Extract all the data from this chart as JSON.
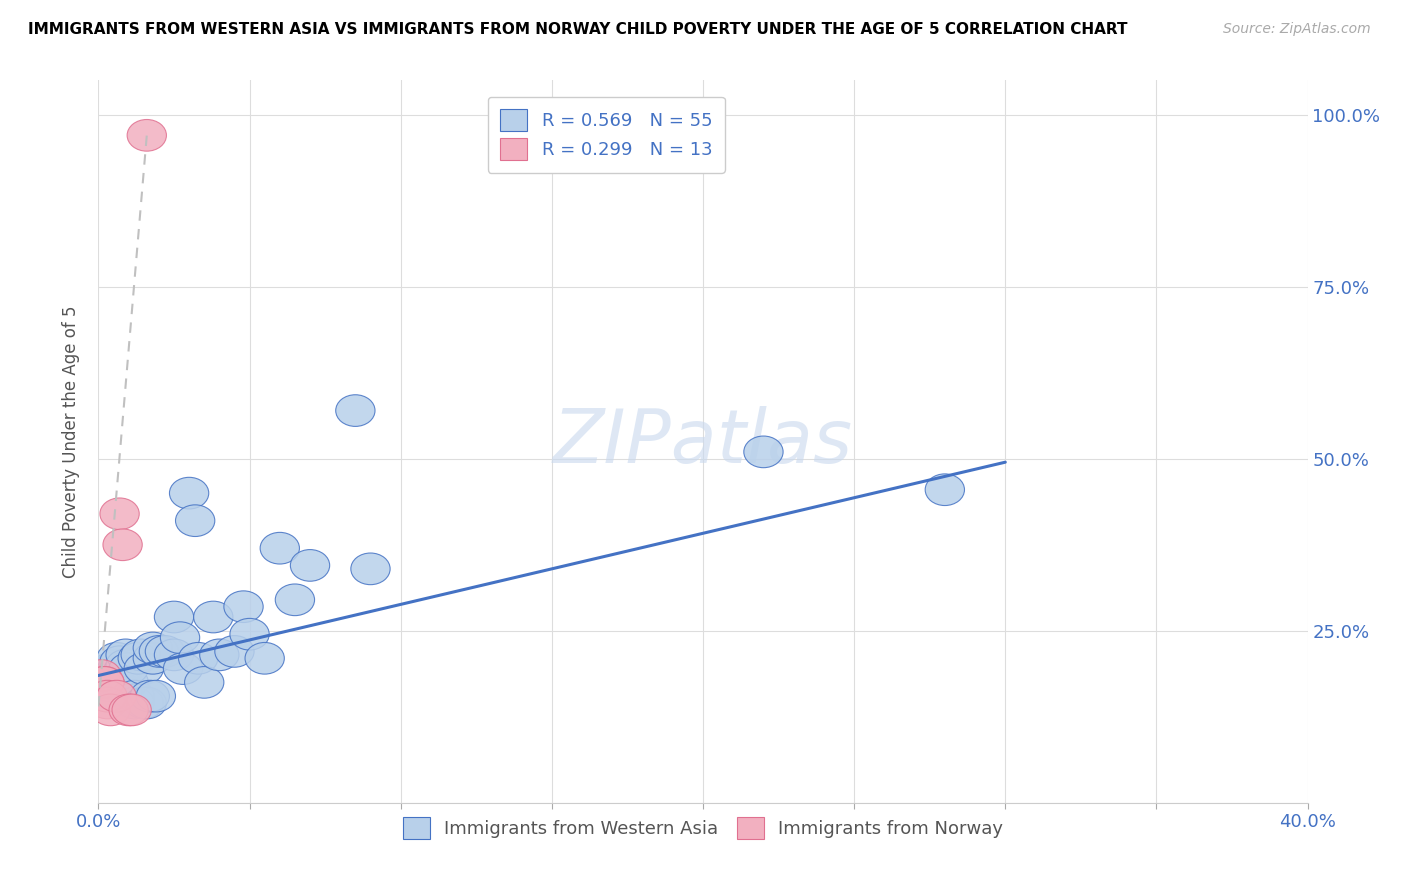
{
  "title": "IMMIGRANTS FROM WESTERN ASIA VS IMMIGRANTS FROM NORWAY CHILD POVERTY UNDER THE AGE OF 5 CORRELATION CHART",
  "source": "Source: ZipAtlas.com",
  "ylabel": "Child Poverty Under the Age of 5",
  "legend_blue": {
    "R": 0.569,
    "N": 55,
    "label": "Immigrants from Western Asia"
  },
  "legend_pink": {
    "R": 0.299,
    "N": 13,
    "label": "Immigrants from Norway"
  },
  "watermark": "ZIPatlas",
  "blue_color": "#b8d0ea",
  "pink_color": "#f2b0c0",
  "blue_line_color": "#4472c4",
  "pink_line_color": "#e07090",
  "gray_line_color": "#c0c0c0",
  "blue_scatter": [
    [
      0.001,
      0.175
    ],
    [
      0.002,
      0.175
    ],
    [
      0.002,
      0.16
    ],
    [
      0.003,
      0.18
    ],
    [
      0.003,
      0.185
    ],
    [
      0.003,
      0.19
    ],
    [
      0.004,
      0.17
    ],
    [
      0.004,
      0.185
    ],
    [
      0.004,
      0.195
    ],
    [
      0.005,
      0.175
    ],
    [
      0.005,
      0.18
    ],
    [
      0.006,
      0.2
    ],
    [
      0.006,
      0.21
    ],
    [
      0.007,
      0.175
    ],
    [
      0.007,
      0.205
    ],
    [
      0.008,
      0.165
    ],
    [
      0.008,
      0.19
    ],
    [
      0.009,
      0.2
    ],
    [
      0.009,
      0.215
    ],
    [
      0.01,
      0.175
    ],
    [
      0.01,
      0.195
    ],
    [
      0.012,
      0.145
    ],
    [
      0.012,
      0.155
    ],
    [
      0.013,
      0.21
    ],
    [
      0.014,
      0.215
    ],
    [
      0.015,
      0.145
    ],
    [
      0.015,
      0.195
    ],
    [
      0.016,
      0.145
    ],
    [
      0.017,
      0.155
    ],
    [
      0.018,
      0.21
    ],
    [
      0.018,
      0.225
    ],
    [
      0.019,
      0.155
    ],
    [
      0.02,
      0.22
    ],
    [
      0.022,
      0.22
    ],
    [
      0.025,
      0.215
    ],
    [
      0.025,
      0.27
    ],
    [
      0.027,
      0.24
    ],
    [
      0.028,
      0.195
    ],
    [
      0.03,
      0.45
    ],
    [
      0.032,
      0.41
    ],
    [
      0.033,
      0.21
    ],
    [
      0.035,
      0.175
    ],
    [
      0.038,
      0.27
    ],
    [
      0.04,
      0.215
    ],
    [
      0.045,
      0.22
    ],
    [
      0.048,
      0.285
    ],
    [
      0.05,
      0.245
    ],
    [
      0.055,
      0.21
    ],
    [
      0.06,
      0.37
    ],
    [
      0.065,
      0.295
    ],
    [
      0.07,
      0.345
    ],
    [
      0.085,
      0.57
    ],
    [
      0.09,
      0.34
    ],
    [
      0.22,
      0.51
    ],
    [
      0.28,
      0.455
    ]
  ],
  "pink_scatter": [
    [
      0.001,
      0.175
    ],
    [
      0.001,
      0.185
    ],
    [
      0.002,
      0.175
    ],
    [
      0.002,
      0.175
    ],
    [
      0.003,
      0.145
    ],
    [
      0.003,
      0.155
    ],
    [
      0.004,
      0.135
    ],
    [
      0.006,
      0.155
    ],
    [
      0.007,
      0.42
    ],
    [
      0.008,
      0.375
    ],
    [
      0.01,
      0.135
    ],
    [
      0.011,
      0.135
    ],
    [
      0.016,
      0.97
    ]
  ],
  "blue_line_x": [
    0.0,
    0.3
  ],
  "blue_line_y": [
    0.185,
    0.495
  ],
  "pink_line_x": [
    0.0,
    0.016
  ],
  "pink_line_y": [
    0.14,
    0.97
  ],
  "xlim": [
    0.0,
    0.4
  ],
  "ylim": [
    0.0,
    1.05
  ],
  "x_ticks": [
    0.0,
    0.05,
    0.1,
    0.15,
    0.2,
    0.25,
    0.3,
    0.35,
    0.4
  ],
  "y_ticks": [
    0.0,
    0.25,
    0.5,
    0.75,
    1.0
  ],
  "y_tick_labels": [
    "",
    "25.0%",
    "50.0%",
    "75.0%",
    "100.0%"
  ]
}
